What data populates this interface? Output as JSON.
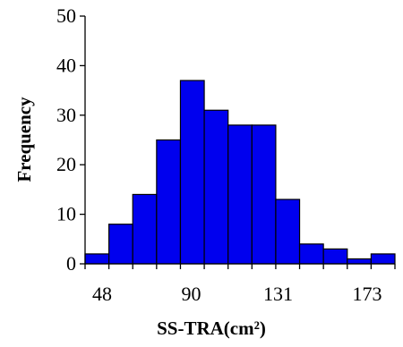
{
  "chart_data": {
    "type": "bar",
    "subtype": "histogram",
    "title": "",
    "xlabel": "SS-TRA(cm²)",
    "ylabel": "Frequency",
    "ylim": [
      0,
      50
    ],
    "yticks": [
      0,
      10,
      20,
      30,
      40,
      50
    ],
    "xticks": [
      48,
      90,
      131,
      173
    ],
    "bin_count": 13,
    "values": [
      2,
      8,
      14,
      25,
      37,
      31,
      28,
      28,
      13,
      4,
      3,
      1,
      2
    ],
    "bar_color": "#0000ee",
    "grid": false,
    "legend": "none"
  }
}
